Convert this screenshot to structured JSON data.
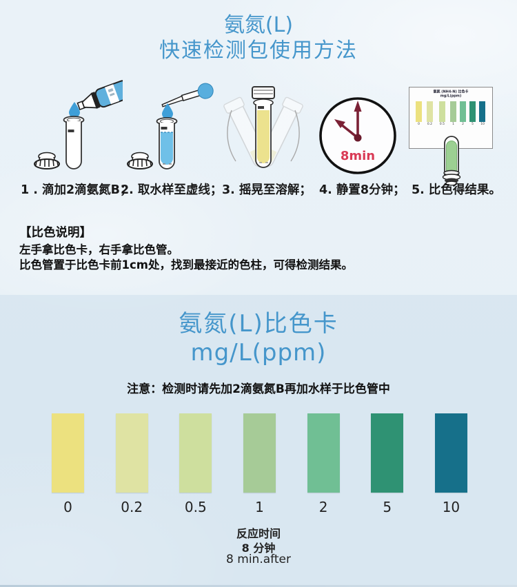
{
  "header": {
    "title_line1": "氨氮(L)",
    "title_line2": "快速检测包使用方法"
  },
  "steps": {
    "captions": [
      "1 . 滴加2滴氨氮B；",
      "2. 取水样至虚线；",
      "3. 摇晃至溶解；",
      "4. 静置8分钟；",
      "5. 比色得结果。"
    ],
    "clock_label": "8min"
  },
  "mini_card": {
    "title_line1": "氨氮 (NH4-N) 比色卡",
    "title_line2": "mg/L(ppm)"
  },
  "colorimetric_instructions": {
    "header": "【比色说明】",
    "line1": "左手拿比色卡，右手拿比色管。",
    "line2": "比色管置于比色卡前1cm处，找到最接近的色柱，可得检测结果。"
  },
  "color_card_section": {
    "title": "氨氮(L)比色卡",
    "subtitle": "mg/L(ppm)",
    "note": "注意：检测时请先加2滴氨氮B再加水样于比色管中",
    "reaction_time_line1": "反应时间",
    "reaction_time_line2": "8 分钟",
    "reaction_time_line3": "8 min.after"
  },
  "swatches": {
    "values": [
      "0",
      "0.2",
      "0.5",
      "1",
      "2",
      "5",
      "10"
    ],
    "colors": [
      "#ece17f",
      "#dfe3a3",
      "#cedf9e",
      "#a6cb97",
      "#70bf94",
      "#2f9273",
      "#16708a"
    ]
  },
  "accent": {
    "title_blue": "#4596cb",
    "clock_red": "#d93a55",
    "liquid_blue": "#6fc0e8",
    "liquid_yellow": "#ece28e",
    "liquid_green": "#9ccf92"
  }
}
